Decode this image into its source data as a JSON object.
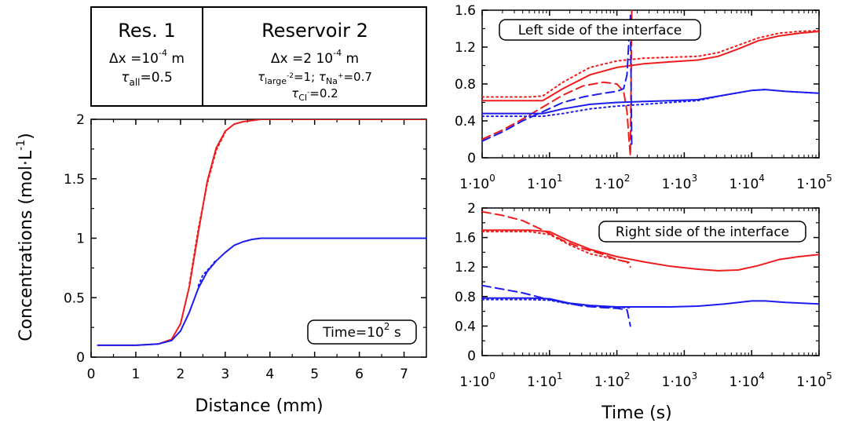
{
  "reservoir_box": {
    "res1_title": "Res. 1",
    "res1_dx_prefix": "Δx =10",
    "res1_dx_exp": "-4",
    "res1_dx_unit": " m",
    "res1_tau": "τ",
    "res1_tau_sub": "all",
    "res1_tau_val": "=0.5",
    "res2_title": "Reservoir 2",
    "res2_dx_prefix": "Δx =2 10",
    "res2_dx_exp": "-4",
    "res2_dx_unit": " m",
    "res2_tau1": "τ",
    "res2_tau1_sub": "large",
    "res2_tau1_sup": "-2",
    "res2_tau1_val": "=1; ",
    "res2_tau2": "τ",
    "res2_tau2_sub": "Na",
    "res2_tau2_sup": "+",
    "res2_tau2_val": "=0.7",
    "res2_tau3": "τ",
    "res2_tau3_sub": "Cl",
    "res2_tau3_sup": "-",
    "res2_tau3_val": "=0.2"
  },
  "colors": {
    "red": "#ee1c1c",
    "blue": "#1c1cee"
  },
  "chart_data": [
    {
      "id": "profile",
      "type": "line",
      "xlabel": "Distance (mm)",
      "ylabel_main": "Concentrations (mol·L",
      "ylabel_sup": "-1",
      "ylabel_end": ")",
      "xlim": [
        0,
        7.5
      ],
      "ylim": [
        0,
        2
      ],
      "xticks": [
        "0",
        "1",
        "2",
        "3",
        "4",
        "5",
        "6",
        "7"
      ],
      "yticks": [
        "0",
        "0.5",
        "1",
        "1.5",
        "2"
      ],
      "annotation_prefix": "Time=10",
      "annotation_exp": "2",
      "annotation_unit": " s",
      "series": [
        {
          "color": "red",
          "style": "solid",
          "x": [
            0.15,
            1.0,
            1.5,
            1.8,
            2.0,
            2.2,
            2.4,
            2.6,
            2.8,
            3.0,
            3.2,
            3.4,
            3.6,
            3.8,
            4.0,
            4.5,
            5.0,
            6.0,
            7.5
          ],
          "y": [
            0.1,
            0.1,
            0.11,
            0.15,
            0.28,
            0.6,
            1.05,
            1.48,
            1.76,
            1.9,
            1.96,
            1.98,
            1.99,
            2.0,
            2.0,
            2.0,
            2.0,
            2.0,
            2.0
          ]
        },
        {
          "color": "red",
          "style": "dotted",
          "x": [
            2.2,
            2.4,
            2.6,
            2.8,
            3.0
          ],
          "y": [
            0.62,
            1.08,
            1.46,
            1.74,
            1.89
          ]
        },
        {
          "color": "blue",
          "style": "solid",
          "x": [
            0.15,
            1.0,
            1.5,
            1.8,
            2.0,
            2.2,
            2.4,
            2.6,
            2.8,
            3.0,
            3.2,
            3.4,
            3.6,
            3.8,
            4.0,
            4.5,
            5.0,
            6.0,
            7.5
          ],
          "y": [
            0.1,
            0.1,
            0.11,
            0.14,
            0.22,
            0.38,
            0.58,
            0.72,
            0.81,
            0.88,
            0.94,
            0.97,
            0.99,
            1.0,
            1.0,
            1.0,
            1.0,
            1.0,
            1.0
          ]
        },
        {
          "color": "blue",
          "style": "dotted",
          "x": [
            2.4,
            2.5,
            2.6,
            2.7,
            2.8
          ],
          "y": [
            0.6,
            0.69,
            0.73,
            0.77,
            0.82
          ]
        }
      ]
    },
    {
      "id": "left-side",
      "type": "line",
      "xscale": "log",
      "xlim": [
        0,
        5
      ],
      "ylim": [
        0,
        1.6
      ],
      "xticks_base": "1·10",
      "xticks_exp": [
        "0",
        "1",
        "2",
        "3",
        "4",
        "5"
      ],
      "yticks": [
        "0",
        "0.4",
        "0.8",
        "1.2",
        "1.6"
      ],
      "annotation": "Left side of the interface",
      "series": [
        {
          "color": "red",
          "style": "solid",
          "x": [
            0,
            0.7,
            0.9,
            1.2,
            1.6,
            2.0,
            2.4,
            2.8,
            3.2,
            3.5,
            3.8,
            4.1,
            4.4,
            4.7,
            5.0
          ],
          "y": [
            0.62,
            0.62,
            0.62,
            0.75,
            0.9,
            0.98,
            1.02,
            1.04,
            1.06,
            1.1,
            1.18,
            1.27,
            1.32,
            1.35,
            1.37
          ]
        },
        {
          "color": "red",
          "style": "dotted",
          "x": [
            0,
            0.7,
            0.9,
            1.2,
            1.6,
            2.0,
            2.4,
            2.8,
            3.2,
            3.5,
            3.8,
            4.1,
            4.4,
            4.7,
            5.0
          ],
          "y": [
            0.66,
            0.66,
            0.67,
            0.82,
            0.98,
            1.05,
            1.08,
            1.09,
            1.1,
            1.14,
            1.22,
            1.3,
            1.35,
            1.37,
            1.38
          ]
        },
        {
          "color": "red",
          "style": "dashed",
          "x": [
            0,
            0.3,
            0.6,
            0.9,
            1.2,
            1.5,
            1.8,
            2.0,
            2.1,
            2.15,
            2.18,
            2.2,
            2.22
          ],
          "y": [
            0.2,
            0.3,
            0.42,
            0.55,
            0.68,
            0.78,
            0.82,
            0.8,
            0.72,
            0.5,
            0.2,
            0.02,
            1.6
          ]
        },
        {
          "color": "blue",
          "style": "solid",
          "x": [
            0,
            0.7,
            0.9,
            1.2,
            1.6,
            2.0,
            2.4,
            2.8,
            3.2,
            3.6,
            4.0,
            4.2,
            4.5,
            5.0
          ],
          "y": [
            0.48,
            0.48,
            0.48,
            0.53,
            0.58,
            0.6,
            0.61,
            0.62,
            0.63,
            0.68,
            0.73,
            0.74,
            0.72,
            0.7
          ]
        },
        {
          "color": "blue",
          "style": "dotted",
          "x": [
            0,
            0.7,
            0.9,
            1.2,
            1.6,
            2.0,
            2.4,
            2.8,
            3.2,
            3.6,
            4.0,
            4.2,
            4.5,
            5.0
          ],
          "y": [
            0.45,
            0.45,
            0.45,
            0.48,
            0.53,
            0.56,
            0.58,
            0.6,
            0.62,
            0.68,
            0.73,
            0.74,
            0.72,
            0.7
          ]
        },
        {
          "color": "blue",
          "style": "dashed",
          "x": [
            0,
            0.3,
            0.6,
            0.9,
            1.2,
            1.5,
            1.8,
            2.0,
            2.1,
            2.15,
            2.18,
            2.2,
            2.22
          ],
          "y": [
            0.18,
            0.28,
            0.4,
            0.5,
            0.6,
            0.66,
            0.7,
            0.72,
            0.75,
            0.9,
            1.3,
            1.55,
            0.1
          ]
        }
      ]
    },
    {
      "id": "right-side",
      "type": "line",
      "xscale": "log",
      "xlabel": "Time (s)",
      "xlim": [
        0,
        5
      ],
      "ylim": [
        0,
        2
      ],
      "xticks_base": "1·10",
      "xticks_exp": [
        "0",
        "1",
        "2",
        "3",
        "4",
        "5"
      ],
      "yticks": [
        "0",
        "0.4",
        "0.8",
        "1.2",
        "1.6",
        "2"
      ],
      "annotation": "Right side of the interface",
      "series": [
        {
          "color": "red",
          "style": "solid",
          "x": [
            0,
            0.7,
            1.0,
            1.3,
            1.6,
            2.0,
            2.4,
            2.8,
            3.2,
            3.5,
            3.8,
            4.1,
            4.4,
            4.7,
            5.0
          ],
          "y": [
            1.7,
            1.7,
            1.68,
            1.55,
            1.44,
            1.34,
            1.27,
            1.21,
            1.17,
            1.15,
            1.16,
            1.22,
            1.3,
            1.34,
            1.37
          ]
        },
        {
          "color": "red",
          "style": "dotted",
          "x": [
            0,
            0.7,
            1.0,
            1.3,
            1.6,
            2.0,
            2.2
          ],
          "y": [
            1.68,
            1.68,
            1.64,
            1.5,
            1.38,
            1.3,
            1.26
          ]
        },
        {
          "color": "red",
          "style": "dashed",
          "x": [
            0,
            0.3,
            0.6,
            0.9,
            1.2,
            1.5,
            1.8,
            2.0,
            2.15,
            2.2
          ],
          "y": [
            1.95,
            1.9,
            1.83,
            1.7,
            1.56,
            1.45,
            1.37,
            1.3,
            1.27,
            1.2
          ]
        },
        {
          "color": "blue",
          "style": "solid",
          "x": [
            0,
            0.7,
            1.0,
            1.3,
            1.6,
            2.0,
            2.4,
            2.8,
            3.2,
            3.6,
            4.0,
            4.2,
            4.5,
            5.0
          ],
          "y": [
            0.78,
            0.78,
            0.77,
            0.71,
            0.68,
            0.66,
            0.66,
            0.66,
            0.67,
            0.7,
            0.74,
            0.74,
            0.72,
            0.7
          ]
        },
        {
          "color": "blue",
          "style": "dotted",
          "x": [
            0,
            0.7,
            1.0,
            1.3,
            1.6,
            2.0,
            2.2
          ],
          "y": [
            0.76,
            0.76,
            0.75,
            0.7,
            0.67,
            0.65,
            0.65
          ]
        },
        {
          "color": "blue",
          "style": "dashed",
          "x": [
            0,
            0.3,
            0.6,
            0.9,
            1.2,
            1.5,
            1.8,
            2.0,
            2.15,
            2.2
          ],
          "y": [
            0.95,
            0.9,
            0.85,
            0.78,
            0.72,
            0.67,
            0.65,
            0.64,
            0.62,
            0.4
          ]
        }
      ]
    }
  ]
}
